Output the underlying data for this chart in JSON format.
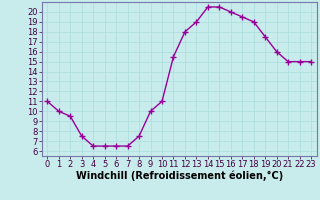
{
  "x": [
    0,
    1,
    2,
    3,
    4,
    5,
    6,
    7,
    8,
    9,
    10,
    11,
    12,
    13,
    14,
    15,
    16,
    17,
    18,
    19,
    20,
    21,
    22,
    23
  ],
  "y": [
    11.0,
    10.0,
    9.5,
    7.5,
    6.5,
    6.5,
    6.5,
    6.5,
    7.5,
    10.0,
    11.0,
    15.5,
    18.0,
    19.0,
    20.5,
    20.5,
    20.0,
    19.5,
    19.0,
    17.5,
    16.0,
    15.0,
    15.0,
    15.0
  ],
  "line_color": "#990099",
  "marker": "+",
  "marker_size": 4,
  "xlabel": "Windchill (Refroidissement éolien,°C)",
  "xlabel_fontsize": 7,
  "ylim": [
    5.5,
    21
  ],
  "xlim": [
    -0.5,
    23.5
  ],
  "yticks": [
    6,
    7,
    8,
    9,
    10,
    11,
    12,
    13,
    14,
    15,
    16,
    17,
    18,
    19,
    20
  ],
  "xticks": [
    0,
    1,
    2,
    3,
    4,
    5,
    6,
    7,
    8,
    9,
    10,
    11,
    12,
    13,
    14,
    15,
    16,
    17,
    18,
    19,
    20,
    21,
    22,
    23
  ],
  "xtick_labels": [
    "0",
    "1",
    "2",
    "3",
    "4",
    "5",
    "6",
    "7",
    "8",
    "9",
    "10",
    "11",
    "12",
    "13",
    "14",
    "15",
    "16",
    "17",
    "18",
    "19",
    "20",
    "21",
    "22",
    "23"
  ],
  "grid_color": "#b0dede",
  "background_color": "#c8ecec",
  "tick_fontsize": 6,
  "line_width": 1.0,
  "spine_color": "#7777aa"
}
